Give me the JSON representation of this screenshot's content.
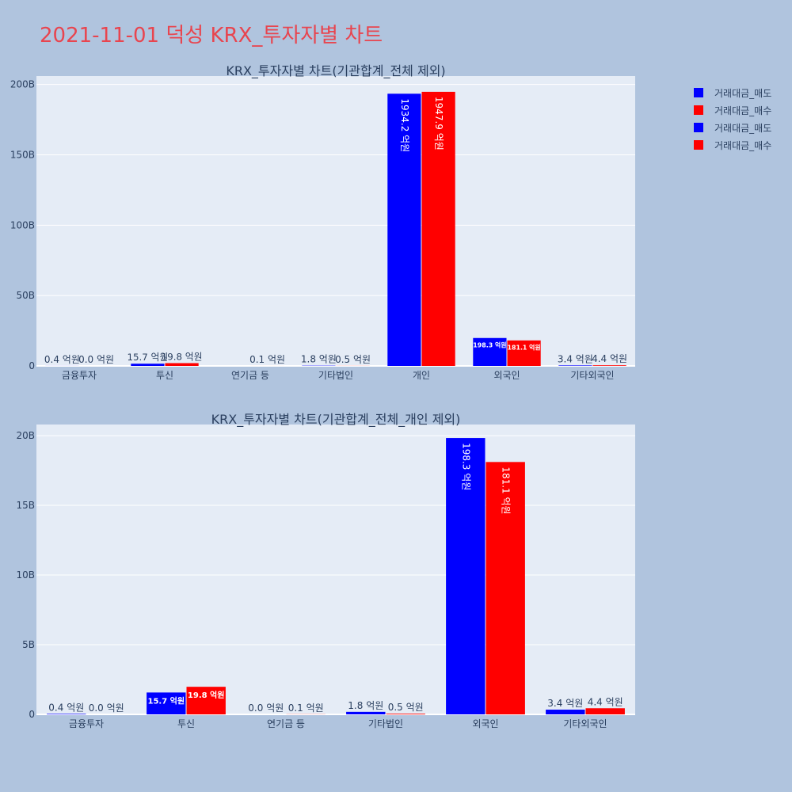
{
  "title": "2021-11-01 덕성 KRX_투자자별 차트",
  "colors": {
    "sell": "#0000ff",
    "buy": "#ff0000",
    "plot_bg": "#e5ecf6",
    "page_bg": "#b0c4de",
    "title": "#e8454f"
  },
  "legend": [
    {
      "label": "거래대금_매도",
      "color": "#0000ff"
    },
    {
      "label": "거래대금_매수",
      "color": "#ff0000"
    },
    {
      "label": "거래대금_매도",
      "color": "#0000ff"
    },
    {
      "label": "거래대금_매수",
      "color": "#ff0000"
    }
  ],
  "chart_data": [
    {
      "type": "bar",
      "title": "KRX_투자자별 차트(기관합계_전체 제외)",
      "categories": [
        "금융투자",
        "투신",
        "연기금 등",
        "기타법인",
        "개인",
        "외국인",
        "기타외국인"
      ],
      "series": [
        {
          "name": "거래대금_매도",
          "color": "#0000ff",
          "values": [
            0.04,
            1.57,
            0,
            0.18,
            193.42,
            19.83,
            0.34
          ],
          "labels": [
            "0.4 억원",
            "15.7 억원",
            "",
            "1.8 억원",
            "1934.2 억원",
            "198.3 억원",
            "3.4 억원"
          ]
        },
        {
          "name": "거래대금_매수",
          "color": "#ff0000",
          "values": [
            0.0,
            1.98,
            0.01,
            0.05,
            194.79,
            18.11,
            0.44
          ],
          "labels": [
            "0.0 억원",
            "19.8 억원",
            "0.1 억원",
            "0.5 억원",
            "1947.9 억원",
            "181.1 억원",
            "4.4 억원"
          ]
        }
      ],
      "yticks": [
        0,
        50,
        100,
        150,
        200
      ],
      "ytick_labels": [
        "0",
        "50B",
        "100B",
        "150B",
        "200B"
      ],
      "ylim": [
        0,
        206
      ]
    },
    {
      "type": "bar",
      "title": "KRX_투자자별 차트(기관합계_전체_개인 제외)",
      "categories": [
        "금융투자",
        "투신",
        "연기금 등",
        "기타법인",
        "외국인",
        "기타외국인"
      ],
      "series": [
        {
          "name": "거래대금_매도",
          "color": "#0000ff",
          "values": [
            0.04,
            1.57,
            0.0,
            0.18,
            19.83,
            0.34
          ],
          "labels": [
            "0.4 억원",
            "15.7 억원",
            "0.0 억원",
            "1.8 억원",
            "198.3 억원",
            "3.4 억원"
          ]
        },
        {
          "name": "거래대금_매수",
          "color": "#ff0000",
          "values": [
            0.0,
            1.98,
            0.01,
            0.05,
            18.11,
            0.44
          ],
          "labels": [
            "0.0 억원",
            "19.8 억원",
            "0.1 억원",
            "0.5 억원",
            "181.1 억원",
            "4.4 억원"
          ]
        }
      ],
      "yticks": [
        0,
        5,
        10,
        15,
        20
      ],
      "ytick_labels": [
        "0",
        "5B",
        "10B",
        "15B",
        "20B"
      ],
      "ylim": [
        0,
        20.8
      ]
    }
  ]
}
